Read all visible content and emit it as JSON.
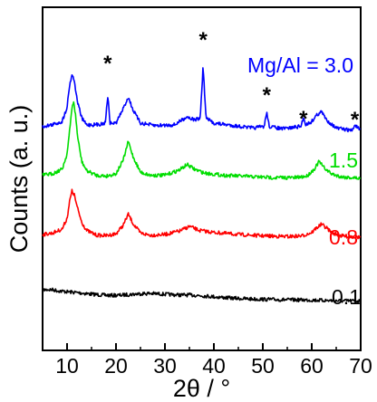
{
  "chart_data": {
    "type": "line",
    "title": "",
    "xlabel": "2θ / °",
    "ylabel": "Counts (a. u.)",
    "xlim": [
      5,
      70
    ],
    "xticks": [
      10,
      20,
      30,
      40,
      50,
      60,
      70
    ],
    "xtick_labels": [
      "10",
      "20",
      "30",
      "40",
      "50",
      "60",
      "70"
    ],
    "yticks_shown": false,
    "grid": false,
    "legend": "none (series labels placed at right of each trace)",
    "series": [
      {
        "label": "0.1",
        "color": "#000000",
        "x": [
          5,
          6,
          7,
          8,
          9,
          10,
          11,
          12,
          13,
          14,
          15,
          17,
          19,
          21,
          23,
          25,
          27,
          29,
          31,
          33,
          35,
          37,
          39,
          41,
          43,
          45,
          47,
          50,
          53,
          56,
          59,
          61,
          63,
          66,
          70
        ],
        "y": [
          1.05,
          1.1,
          1.08,
          1.0,
          0.95,
          0.9,
          0.86,
          0.82,
          0.78,
          0.73,
          0.68,
          0.6,
          0.56,
          0.58,
          0.65,
          0.72,
          0.74,
          0.7,
          0.64,
          0.6,
          0.6,
          0.55,
          0.48,
          0.4,
          0.33,
          0.28,
          0.24,
          0.2,
          0.17,
          0.15,
          0.14,
          0.12,
          0.1,
          0.06,
          0.05
        ]
      },
      {
        "label": "0.8",
        "color": "#ff0000",
        "x": [
          5,
          7,
          9,
          10,
          10.5,
          11,
          11.5,
          12,
          13,
          14,
          16,
          18,
          20,
          21.5,
          22.5,
          23.5,
          25,
          27,
          30,
          33,
          35,
          37,
          40,
          45,
          50,
          55,
          58,
          60,
          61,
          62,
          63,
          64,
          66,
          70
        ],
        "y": [
          0.2,
          0.3,
          0.6,
          1.4,
          2.6,
          3.4,
          3.1,
          2.3,
          1.1,
          0.5,
          0.15,
          0.12,
          0.25,
          0.9,
          1.7,
          1.0,
          0.3,
          0.15,
          0.2,
          0.45,
          0.8,
          0.5,
          0.35,
          0.2,
          0.1,
          0.05,
          0.1,
          0.35,
          0.7,
          0.95,
          0.7,
          0.35,
          0.1,
          0.0
        ]
      },
      {
        "label": "1.5",
        "color": "#00dd00",
        "x": [
          5,
          7,
          9,
          10,
          10.5,
          11,
          11.3,
          11.7,
          12.2,
          13,
          14,
          16,
          18,
          20,
          21.5,
          22.5,
          23.5,
          25,
          27,
          30,
          33,
          34.5,
          36,
          38,
          42,
          47,
          52,
          57,
          59,
          60.5,
          61.5,
          62.5,
          64,
          66,
          70
        ],
        "y": [
          0.2,
          0.3,
          0.6,
          1.6,
          3.0,
          4.6,
          5.0,
          4.2,
          2.6,
          1.1,
          0.5,
          0.2,
          0.15,
          0.3,
          1.2,
          2.4,
          1.4,
          0.4,
          0.2,
          0.2,
          0.55,
          0.9,
          0.6,
          0.35,
          0.2,
          0.12,
          0.05,
          0.05,
          0.15,
          0.6,
          1.1,
          0.7,
          0.3,
          0.1,
          0.0
        ]
      },
      {
        "label": "Mg/Al = 3.0",
        "color": "#0000ff",
        "x": [
          5,
          7,
          9,
          10,
          10.5,
          11,
          11.5,
          12,
          13,
          14,
          16,
          17.8,
          18.3,
          18.8,
          20,
          21.5,
          22.5,
          23.5,
          25,
          28,
          32,
          34.5,
          36,
          37.2,
          37.8,
          38.4,
          40,
          44,
          48,
          50.3,
          50.8,
          51.3,
          54,
          57.8,
          58.3,
          58.8,
          60,
          61,
          62,
          63,
          65,
          67,
          68.3,
          68.8,
          70
        ],
        "y": [
          0.3,
          0.4,
          0.6,
          1.5,
          2.8,
          3.5,
          3.1,
          2.0,
          0.8,
          0.4,
          0.4,
          0.5,
          2.2,
          0.5,
          0.5,
          1.4,
          2.1,
          1.3,
          0.5,
          0.35,
          0.4,
          0.9,
          0.7,
          0.8,
          4.0,
          0.8,
          0.5,
          0.35,
          0.2,
          0.3,
          1.2,
          0.3,
          0.15,
          0.3,
          0.85,
          0.4,
          0.6,
          1.0,
          1.2,
          0.7,
          0.2,
          0.1,
          0.05,
          0.4,
          0.05
        ]
      }
    ],
    "series_labels": [
      {
        "text": "Mg/Al = 3.0",
        "color": "#0000ff"
      },
      {
        "text": "1.5",
        "color": "#00dd00"
      },
      {
        "text": "0.8",
        "color": "#ff0000"
      },
      {
        "text": "0.1",
        "color": "#000000"
      }
    ],
    "annotations": [
      {
        "text": "*",
        "x": 18.3
      },
      {
        "text": "*",
        "x": 37.8
      },
      {
        "text": "*",
        "x": 50.8
      },
      {
        "text": "*",
        "x": 58.3
      },
      {
        "text": "*",
        "x": 68.8
      }
    ]
  }
}
